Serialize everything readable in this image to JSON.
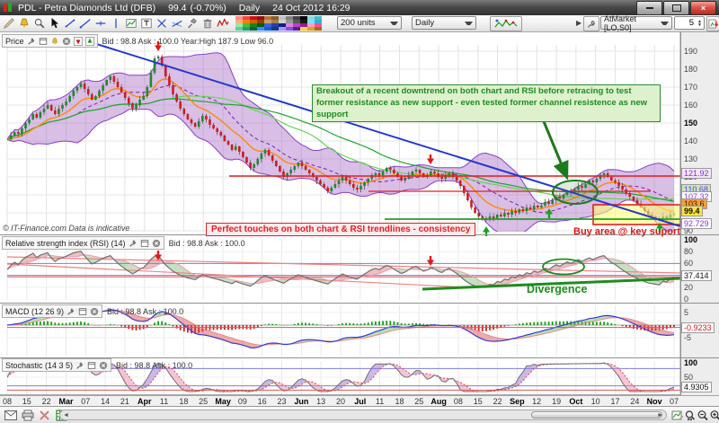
{
  "titlebar": {
    "title": "PDL - Petra Diamonds Ltd (DFB)",
    "price": "99.4",
    "change": "(-0.70%)",
    "timeframe": "Daily",
    "datetime": "24 Oct 2012 16:29"
  },
  "toolbar": {
    "units": "200 units",
    "timeframe": "Daily",
    "order_type": "AtMarket [LO,S0]",
    "quantity": "5",
    "palette": [
      "#ff8f8f",
      "#ff4040",
      "#d01010",
      "#901010",
      "#b87333",
      "#8a5a2a",
      "#c0c0c0",
      "#808080",
      "#404040",
      "#000000",
      "#8fd7d7",
      "#40c0c0",
      "#ffb080",
      "#ff8000",
      "#d06000",
      "#904000",
      "#c8a165",
      "#a08040",
      "#d0d0d0",
      "#989898",
      "#585858",
      "#181818",
      "#80e0ff",
      "#30b0e0",
      "#9fe89f",
      "#40c040",
      "#108a10",
      "#0a5a0a",
      "#4060e0",
      "#2040b0",
      "#102080",
      "#e080e0",
      "#c040c0",
      "#902090",
      "#ff9fc0",
      "#ff5090",
      "#60d0a0",
      "#20a070",
      "#106048",
      "#3090ff",
      "#1060d0",
      "#0a3a90",
      "#b090ff",
      "#8050e0",
      "#5020a0",
      "#ffd040",
      "#e0a020",
      "#a07010"
    ]
  },
  "panels": {
    "price": {
      "title": "Price",
      "info": "Bid : 98.8 Ask : 100.0 Year:High 187.9 Low 96.0",
      "ticks": [
        "190",
        "180",
        "170",
        "160",
        "150",
        "140",
        "130",
        "120",
        "110",
        "100",
        "90"
      ],
      "value_labels": [
        {
          "text": "121.92",
          "bg": "#f3e6f7",
          "fg": "#8a2be2"
        },
        {
          "text": "110.68",
          "bg": "#bfe8bf",
          "fg": "#8a2be2"
        },
        {
          "text": "107.32",
          "bg": "#ffffff",
          "fg": "#8a2be2"
        },
        {
          "text": "103.6",
          "bg": "#ff9f2e",
          "fg": "#222222"
        },
        {
          "text": "99.4",
          "bg": "#ffe53e",
          "fg": "#111111"
        },
        {
          "text": "92.729",
          "bg": "#ffffff",
          "fg": "#8a2be2"
        }
      ]
    },
    "rsi": {
      "title": "Relative strength index (RSI) (14)",
      "info": "Bid : 98.8 Ask : 100.0",
      "ticks": [
        "100",
        "80",
        "60",
        "20",
        "0"
      ],
      "value": "37.414"
    },
    "macd": {
      "title": "MACD (12 26 9)",
      "info": "Bid : 98.8 Ask : 100.0",
      "ticks": [
        "5",
        "-5"
      ],
      "value": "-0.9233"
    },
    "stoch": {
      "title": "Stochastic (14 3 5)",
      "info": "Bid : 98.8 Ask : 100.0",
      "ticks": [
        "100",
        "50"
      ],
      "value": "4.9305"
    }
  },
  "annotations": {
    "breakout": "Breakout of a recent downtrend on both chart and RSI before retracing to test former resistance as new support - even tested former channel resistence as new support",
    "touches": "Perfect touches on both chart & RSI trendlines - consistency",
    "buy_area": "Buy area @ key suport",
    "divergence": "Divergence",
    "copyright": "© IT-Finance.com  Data is indicative"
  },
  "x_axis": [
    "08",
    "15",
    "22",
    "Mar",
    "07",
    "14",
    "21",
    "Apr",
    "11",
    "18",
    "25",
    "May",
    "09",
    "16",
    "23",
    "Jun",
    "13",
    "20",
    "Jul",
    "11",
    "18",
    "25",
    "Aug",
    "08",
    "15",
    "22",
    "Sep",
    "12",
    "19",
    "Oct",
    "10",
    "17",
    "24",
    "Nov",
    "07"
  ],
  "chart_data": {
    "type": "candlestick",
    "symbol": "PDL - Petra Diamonds Ltd",
    "timeframe": "Daily",
    "last_price": 99.4,
    "bid": 98.8,
    "ask": 100.0,
    "year_high": 187.9,
    "year_low": 96.0,
    "closes": [
      141,
      143,
      145,
      144,
      147,
      150,
      152,
      155,
      153,
      156,
      158,
      160,
      157,
      155,
      158,
      160,
      162,
      165,
      168,
      170,
      172,
      169,
      166,
      163,
      165,
      168,
      171,
      174,
      176,
      173,
      170,
      167,
      164,
      161,
      158,
      160,
      163,
      165,
      170,
      178,
      186,
      187,
      182,
      176,
      171,
      166,
      162,
      158,
      155,
      152,
      150,
      148,
      151,
      154,
      152,
      149,
      147,
      145,
      143,
      140,
      138,
      135,
      137,
      134,
      131,
      128,
      125,
      127,
      130,
      133,
      135,
      132,
      129,
      126,
      123,
      120,
      122,
      124,
      126,
      128,
      126,
      124,
      122,
      120,
      118,
      116,
      114,
      112,
      114,
      116,
      118,
      120,
      118,
      116,
      114,
      113,
      115,
      117,
      119,
      121,
      122,
      121,
      123,
      125,
      124,
      122,
      120,
      118,
      119,
      121,
      123,
      124,
      122,
      120,
      121,
      123,
      122,
      120,
      119,
      121,
      122,
      120,
      118,
      115,
      111,
      107,
      103,
      100,
      98,
      97,
      96,
      98,
      97,
      99,
      98,
      100,
      99,
      101,
      100,
      102,
      101,
      103,
      102,
      104,
      103,
      104,
      106,
      105,
      107,
      109,
      108,
      110,
      112,
      111,
      113,
      115,
      114,
      116,
      118,
      117,
      119,
      121,
      122,
      120,
      118,
      117,
      115,
      113,
      111,
      109,
      107,
      105,
      103,
      101,
      99,
      98,
      97,
      96,
      98,
      97,
      99,
      99.4
    ],
    "levels": {
      "resistance": [
        120.5,
        112
      ],
      "support": [
        96.5
      ],
      "downtrend_line": {
        "start_price": 197,
        "end_price": 92.5
      }
    },
    "buy_zone": {
      "price_from": 97,
      "price_to": 104.5
    },
    "indicators": [
      {
        "name": "Bollinger Bands",
        "period": 20,
        "upper": 121.92,
        "middle": 107.32,
        "lower": 92.729
      },
      {
        "name": "Moving Average (orange)",
        "value": 103.6
      },
      {
        "name": "Moving Average (green)",
        "value": 110.68
      },
      {
        "name": "RSI",
        "period": 14,
        "value": 37.414
      },
      {
        "name": "MACD",
        "params": "12 26 9",
        "value": -0.9233
      },
      {
        "name": "Stochastic",
        "params": "14 3 5",
        "value": 4.9305
      }
    ]
  }
}
